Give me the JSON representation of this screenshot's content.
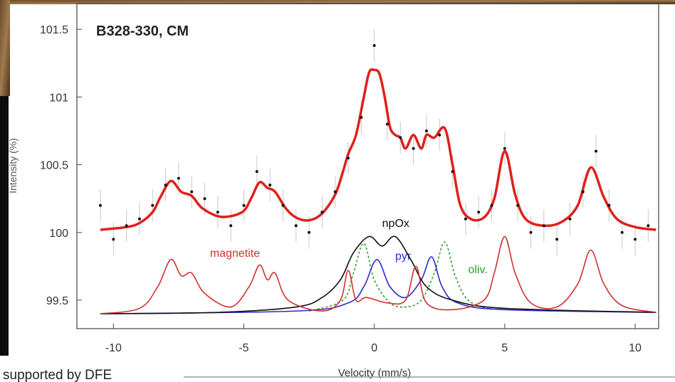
{
  "chart_data": {
    "type": "line",
    "title": "B328-330, CM",
    "xlabel": "Velocity (mm/s)",
    "ylabel": "Intensity (%)",
    "footer": "supported by DFE",
    "xlim": [
      -11.4,
      10.9
    ],
    "ylim": [
      99.29,
      101.69
    ],
    "xticks": [
      -10,
      -5,
      0,
      5,
      10
    ],
    "yticks": [
      99.5,
      100,
      100.5,
      101,
      101.5
    ],
    "measured": {
      "color": "#111111",
      "error_color": "#c8c8c8",
      "error": 0.12,
      "x": [
        -10.5,
        -10,
        -9.5,
        -9,
        -8.5,
        -8,
        -7.5,
        -7,
        -6.5,
        -6,
        -5.5,
        -5,
        -4.5,
        -4,
        -3.5,
        -3,
        -2.5,
        -2,
        -1.5,
        -1,
        -0.5,
        0,
        0.5,
        1,
        1.5,
        2,
        2.5,
        3,
        3.5,
        4,
        4.5,
        5,
        5.5,
        6,
        6.5,
        7,
        7.5,
        8,
        8.5,
        9,
        9.5,
        10,
        10.5
      ],
      "values": [
        100.2,
        99.95,
        100.05,
        100.1,
        100.2,
        100.35,
        100.4,
        100.3,
        100.25,
        100.15,
        100.05,
        100.2,
        100.45,
        100.35,
        100.2,
        100.05,
        100.0,
        100.15,
        100.3,
        100.55,
        100.85,
        101.38,
        100.8,
        100.7,
        100.62,
        100.75,
        100.72,
        100.45,
        100.1,
        100.15,
        100.2,
        100.62,
        100.2,
        100.0,
        100.05,
        99.95,
        100.1,
        100.3,
        100.6,
        100.2,
        100.0,
        99.95,
        100.05
      ]
    },
    "series": [
      {
        "color": "#e0201b",
        "width": 3.5,
        "dash": false,
        "x": [
          -10.5,
          -9.5,
          -9,
          -8.5,
          -8.2,
          -7.8,
          -7.4,
          -7.0,
          -6.6,
          -6.0,
          -5.5,
          -5.0,
          -4.7,
          -4.4,
          -4.1,
          -3.8,
          -3.4,
          -3.0,
          -2.5,
          -2.0,
          -1.5,
          -1.2,
          -1.0,
          -0.7,
          -0.4,
          -0.2,
          0,
          0.2,
          0.4,
          0.6,
          0.8,
          1.0,
          1.2,
          1.5,
          1.8,
          2.0,
          2.3,
          2.7,
          3.0,
          3.3,
          3.7,
          4.2,
          4.6,
          5.0,
          5.4,
          5.8,
          6.5,
          7.2,
          7.8,
          8.3,
          8.8,
          9.3,
          10,
          10.8
        ],
        "values": [
          100.02,
          100.04,
          100.07,
          100.15,
          100.26,
          100.38,
          100.3,
          100.27,
          100.18,
          100.12,
          100.12,
          100.16,
          100.26,
          100.37,
          100.33,
          100.3,
          100.18,
          100.11,
          100.09,
          100.14,
          100.28,
          100.45,
          100.58,
          100.72,
          101.0,
          101.18,
          101.2,
          101.17,
          101.0,
          100.78,
          100.72,
          100.7,
          100.62,
          100.72,
          100.62,
          100.72,
          100.7,
          100.77,
          100.5,
          100.2,
          100.1,
          100.11,
          100.25,
          100.6,
          100.28,
          100.1,
          100.05,
          100.08,
          100.2,
          100.48,
          100.26,
          100.1,
          100.04,
          100.02
        ]
      },
      {
        "name": "magnetite",
        "color": "#d0312d",
        "width": 1.6,
        "dash": false,
        "label_at": [
          -6.3,
          99.82
        ],
        "x": [
          -10.5,
          -9,
          -8.3,
          -7.8,
          -7.4,
          -7.0,
          -6.5,
          -5.5,
          -4.8,
          -4.4,
          -4.1,
          -3.8,
          -3.3,
          -2,
          -1.3,
          -1.0,
          -0.7,
          -0.3,
          0.5,
          1.2,
          1.6,
          2.0,
          3,
          4.2,
          4.6,
          5.0,
          5.4,
          6,
          7,
          7.8,
          8.3,
          8.8,
          9.5,
          10.8
        ],
        "values": [
          99.4,
          99.44,
          99.6,
          99.8,
          99.68,
          99.7,
          99.55,
          99.45,
          99.6,
          99.76,
          99.65,
          99.7,
          99.5,
          99.42,
          99.5,
          99.72,
          99.5,
          99.52,
          99.48,
          99.5,
          99.75,
          99.48,
          99.43,
          99.5,
          99.7,
          99.97,
          99.7,
          99.48,
          99.45,
          99.62,
          99.87,
          99.62,
          99.46,
          99.41
        ]
      },
      {
        "name": "npOx",
        "color": "#111111",
        "width": 1.6,
        "dash": false,
        "label_at": [
          0.3,
          100.04
        ],
        "x": [
          -10.5,
          -6,
          -3,
          -2,
          -1.3,
          -0.8,
          -0.2,
          0.3,
          0.8,
          1.4,
          2,
          3,
          5,
          10.8
        ],
        "values": [
          99.4,
          99.41,
          99.45,
          99.52,
          99.65,
          99.85,
          99.97,
          99.9,
          99.97,
          99.8,
          99.6,
          99.5,
          99.44,
          99.41
        ]
      },
      {
        "name": "pyr",
        "color": "#2a2ad0",
        "width": 1.6,
        "dash": false,
        "label_at": [
          0.8,
          99.8
        ],
        "x": [
          -10.5,
          -3,
          -1,
          -0.4,
          0.1,
          0.6,
          1.2,
          1.8,
          2.2,
          2.6,
          3.2,
          5,
          10.8
        ],
        "values": [
          99.4,
          99.42,
          99.48,
          99.6,
          99.8,
          99.6,
          99.52,
          99.65,
          99.82,
          99.6,
          99.48,
          99.43,
          99.41
        ]
      },
      {
        "name": "oliv.",
        "color": "#2e9a2e",
        "width": 1.6,
        "dash": true,
        "label_at": [
          3.6,
          99.7
        ],
        "x": [
          -2.5,
          -1.2,
          -0.8,
          -0.4,
          0,
          0.6,
          1.2,
          1.8,
          2.3,
          2.7,
          3.1,
          3.6,
          4.5
        ],
        "values": [
          99.42,
          99.5,
          99.7,
          99.92,
          99.65,
          99.48,
          99.45,
          99.5,
          99.7,
          99.93,
          99.68,
          99.5,
          99.43
        ]
      }
    ]
  }
}
